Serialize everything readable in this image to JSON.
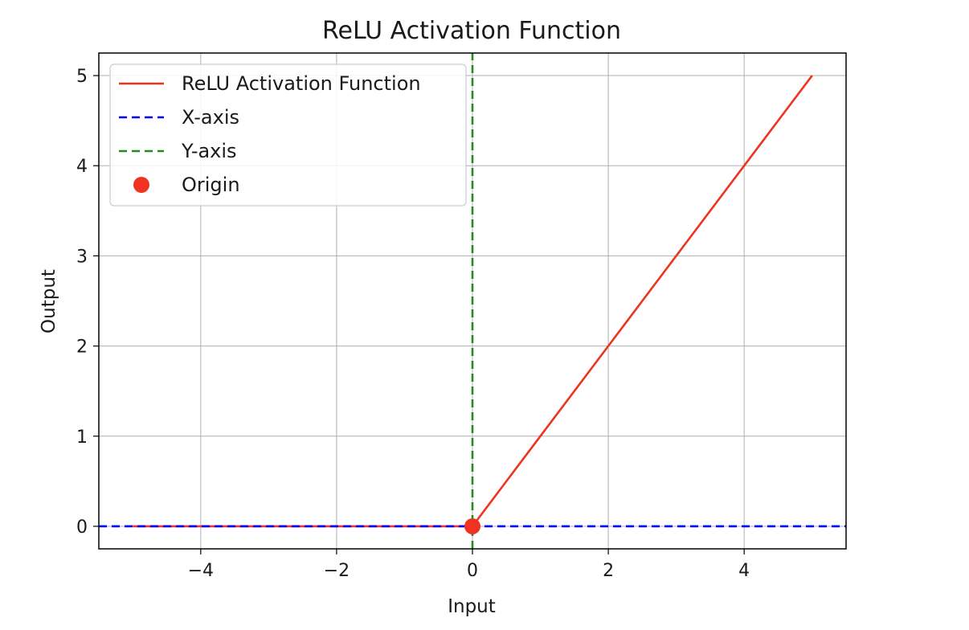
{
  "chart_data": {
    "type": "line",
    "title": "ReLU Activation Function",
    "xlabel": "Input",
    "ylabel": "Output",
    "xlim": [
      -5.5,
      5.5
    ],
    "ylim": [
      -0.25,
      5.25
    ],
    "xticks": [
      -4,
      -2,
      0,
      2,
      4
    ],
    "xtick_labels": [
      "−4",
      "−2",
      "0",
      "2",
      "4"
    ],
    "yticks": [
      0,
      1,
      2,
      3,
      4,
      5
    ],
    "ytick_labels": [
      "0",
      "1",
      "2",
      "3",
      "4",
      "5"
    ],
    "grid": true,
    "legend_position": "top-left",
    "series": [
      {
        "name": "ReLU Activation Function",
        "style": "solid",
        "color": "#ee3322",
        "x": [
          -5,
          0,
          5
        ],
        "y": [
          0,
          0,
          5
        ]
      },
      {
        "name": "X-axis",
        "style": "dashed",
        "color": "#0000ff",
        "x": [
          -5.5,
          5.5
        ],
        "y": [
          0,
          0
        ]
      },
      {
        "name": "Y-axis",
        "style": "dashed",
        "color": "#228b22",
        "x": [
          0,
          0
        ],
        "y": [
          -0.25,
          5.25
        ]
      },
      {
        "name": "Origin",
        "style": "marker",
        "color": "#ee3322",
        "x": [
          0
        ],
        "y": [
          0
        ]
      }
    ]
  }
}
